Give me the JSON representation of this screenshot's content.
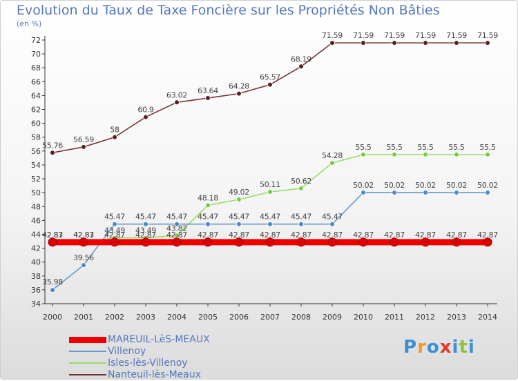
{
  "title": "Evolution du Taux de Taxe Foncière sur les Propriétés Non Bâties",
  "unit": "(en %)",
  "logo": {
    "text": "Proxiti",
    "colors": [
      "#3b8fd4",
      "#f29a1f",
      "#3b8fd4",
      "#e23b2e",
      "#3b8fd4",
      "#8cc63f",
      "#3b8fd4"
    ]
  },
  "chart_data": {
    "type": "line",
    "title": "Evolution du Taux de Taxe Foncière sur les Propriétés Non Bâties",
    "ylabel": "(en %)",
    "xlabel": "",
    "ylim": [
      34,
      72
    ],
    "yticks": [
      34,
      36,
      38,
      40,
      42,
      44,
      46,
      48,
      50,
      52,
      54,
      56,
      58,
      60,
      62,
      64,
      66,
      68,
      70,
      72
    ],
    "grid": false,
    "categories": [
      "2000",
      "2001",
      "2002",
      "2003",
      "2004",
      "2005",
      "2006",
      "2007",
      "2008",
      "2009",
      "2010",
      "2011",
      "2012",
      "2013",
      "2014"
    ],
    "series": [
      {
        "name": "MAREUIL-LèS-MEAUX",
        "color": "#ee0000",
        "marker": "#dd0000",
        "values": [
          42.87,
          42.87,
          42.87,
          42.87,
          42.87,
          42.87,
          42.87,
          42.87,
          42.87,
          42.87,
          42.87,
          42.87,
          42.87,
          42.87,
          42.87
        ],
        "labels": [
          "42.87",
          "42.87",
          "42.87",
          "42.87",
          "42.87",
          "42.87",
          "42.87",
          "42.87",
          "42.87",
          "42.87",
          "42.87",
          "42.87",
          "42.87",
          "42.87",
          "42.87"
        ]
      },
      {
        "name": "Villenoy",
        "color": "#6699cc",
        "marker": "#4a86c8",
        "values": [
          35.98,
          39.56,
          45.47,
          45.47,
          45.47,
          45.47,
          45.47,
          45.47,
          45.47,
          45.47,
          50.02,
          50.02,
          50.02,
          50.02,
          50.02
        ],
        "labels": [
          "35.98",
          "39.56",
          "45.47",
          "45.47",
          "45.47",
          "45.47",
          "45.47",
          "45.47",
          "45.47",
          "45.47",
          "50.02",
          "50.02",
          "50.02",
          "50.02",
          "50.02"
        ]
      },
      {
        "name": "Isles-lès-Villenoy",
        "color": "#99dd66",
        "marker": "#7ac943",
        "values": [
          42.83,
          42.83,
          43.49,
          43.49,
          43.82,
          48.18,
          49.02,
          50.11,
          50.62,
          54.28,
          55.5,
          55.5,
          55.5,
          55.5,
          55.5
        ],
        "labels": [
          "42.83",
          "42.83",
          "43.49",
          "43.49",
          "43.82",
          "48.18",
          "49.02",
          "50.11",
          "50.62",
          "54.28",
          "55.5",
          "55.5",
          "55.5",
          "55.5",
          "55.5"
        ]
      },
      {
        "name": "Nanteuil-lès-Meaux",
        "color": "#773333",
        "marker": "#5a1e1e",
        "values": [
          55.76,
          56.59,
          58,
          60.9,
          63.02,
          63.64,
          64.28,
          65.57,
          68.19,
          71.59,
          71.59,
          71.59,
          71.59,
          71.59,
          71.59
        ],
        "labels": [
          "55.76",
          "56.59",
          "58",
          "60.9",
          "63.02",
          "63.64",
          "64.28",
          "65.57",
          "68.19",
          "71.59",
          "71.59",
          "71.59",
          "71.59",
          "71.59",
          "71.59"
        ]
      }
    ]
  }
}
